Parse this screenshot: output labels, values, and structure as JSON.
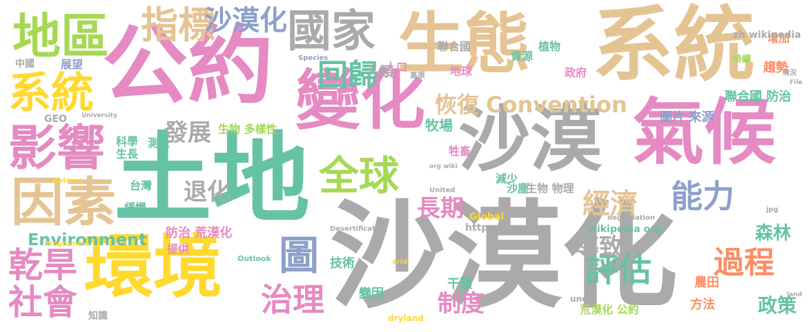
{
  "palette": {
    "gray": "#aaaaaa",
    "gold": "#e0c98f",
    "pink": "#e58ac3",
    "teal": "#66c2a5",
    "orange": "#fc8d62",
    "green": "#a6d854",
    "yellow": "#ffd92f",
    "blue": "#8da0cb",
    "tan": "#e5c494"
  },
  "words": [
    {
      "text": "沙漠化",
      "color": "gray"
    },
    {
      "text": "土地",
      "color": "teal"
    },
    {
      "text": "公約",
      "color": "pink"
    },
    {
      "text": "系統",
      "color": "tan"
    },
    {
      "text": "生態",
      "color": "tan"
    },
    {
      "text": "沙漠",
      "color": "gray"
    },
    {
      "text": "氣候",
      "color": "pink"
    },
    {
      "text": "變化",
      "color": "pink"
    },
    {
      "text": "環境",
      "color": "yellow"
    },
    {
      "text": "地區",
      "color": "green"
    },
    {
      "text": "影響",
      "color": "pink"
    },
    {
      "text": "因素",
      "color": "tan"
    },
    {
      "text": "系統",
      "color": "yellow"
    },
    {
      "text": "國家",
      "color": "gray"
    },
    {
      "text": "指標",
      "color": "tan"
    },
    {
      "text": "沙漠化",
      "color": "blue"
    },
    {
      "text": "回歸",
      "color": "teal"
    },
    {
      "text": "全球",
      "color": "green"
    },
    {
      "text": "圖",
      "color": "blue"
    },
    {
      "text": "治理",
      "color": "pink"
    },
    {
      "text": "乾旱",
      "color": "pink"
    },
    {
      "text": "社會",
      "color": "pink"
    },
    {
      "text": "評估",
      "color": "teal"
    },
    {
      "text": "過程",
      "color": "orange"
    },
    {
      "text": "能力",
      "color": "blue"
    },
    {
      "text": "經濟",
      "color": "tan"
    },
    {
      "text": "長期",
      "color": "pink"
    },
    {
      "text": "Convention",
      "color": "tan"
    },
    {
      "text": "恢復",
      "color": "tan"
    },
    {
      "text": "Environment",
      "color": "teal"
    },
    {
      "text": "發展",
      "color": "gray"
    },
    {
      "text": "退化",
      "color": "gray"
    },
    {
      "text": "導致",
      "color": "gray"
    },
    {
      "text": "制度",
      "color": "pink"
    },
    {
      "text": "森林",
      "color": "teal"
    },
    {
      "text": "政策",
      "color": "teal"
    },
    {
      "text": "防治 荒漠化",
      "color": "pink"
    },
    {
      "text": "聯合國 防治",
      "color": "teal"
    },
    {
      "text": "圖片 來源",
      "color": "blue"
    },
    {
      "text": "技術",
      "color": "teal"
    },
    {
      "text": "干預",
      "color": "teal"
    },
    {
      "text": "變因",
      "color": "teal"
    },
    {
      "text": "農田",
      "color": "orange"
    },
    {
      "text": "方法",
      "color": "orange"
    },
    {
      "text": "牧場",
      "color": "teal"
    },
    {
      "text": "人類",
      "color": "gray"
    },
    {
      "text": "人口",
      "color": "pink"
    },
    {
      "text": "地球",
      "color": "pink"
    },
    {
      "text": "政府",
      "color": "pink"
    },
    {
      "text": "資源",
      "color": "teal"
    },
    {
      "text": "趨勢",
      "color": "orange"
    },
    {
      "text": "增加",
      "color": "orange"
    },
    {
      "text": "聯合國",
      "color": "gray"
    },
    {
      "text": "植物",
      "color": "teal"
    },
    {
      "text": "生物 多樣性",
      "color": "green"
    },
    {
      "text": "測量",
      "color": "teal"
    },
    {
      "text": "提供",
      "color": "pink"
    },
    {
      "text": "台灣",
      "color": "teal"
    },
    {
      "text": "緩慢",
      "color": "teal"
    },
    {
      "text": "科學",
      "color": "teal"
    },
    {
      "text": "生長",
      "color": "teal"
    },
    {
      "text": "展望",
      "color": "blue"
    },
    {
      "text": "減少",
      "color": "teal"
    },
    {
      "text": "沙塵",
      "color": "teal"
    },
    {
      "text": "生物 物理",
      "color": "gray"
    },
    {
      "text": "荒漠化 公約",
      "color": "green"
    },
    {
      "text": "牲畜",
      "color": "pink"
    },
    {
      "text": "http zh",
      "color": "gray"
    },
    {
      "text": "Global",
      "color": "yellow"
    },
    {
      "text": "wikipedia org",
      "color": "teal"
    },
    {
      "text": "zh wikipedia",
      "color": "gray"
    },
    {
      "text": "GEO",
      "color": "gray"
    },
    {
      "text": "知識",
      "color": "gray"
    },
    {
      "text": "dryland",
      "color": "yellow"
    },
    {
      "text": "unep",
      "color": "gray"
    },
    {
      "text": "Desertification",
      "color": "gray"
    },
    {
      "text": "Outlook",
      "color": "teal"
    },
    {
      "text": "Species",
      "color": "blue"
    },
    {
      "text": "Nations",
      "color": "yellow"
    },
    {
      "text": "Programme",
      "color": "yellow"
    },
    {
      "text": "University",
      "color": "gray"
    },
    {
      "text": "中國",
      "color": "gray"
    },
    {
      "text": "高原",
      "color": "gray"
    },
    {
      "text": "持續",
      "color": "green"
    },
    {
      "text": "情況",
      "color": "gray"
    },
    {
      "text": "File",
      "color": "gray"
    },
    {
      "text": "jpg",
      "color": "gray"
    },
    {
      "text": "degradation",
      "color": "gray"
    },
    {
      "text": "land",
      "color": "gray"
    },
    {
      "text": "arid",
      "color": "yellow"
    },
    {
      "text": "United",
      "color": "gray"
    },
    {
      "text": "org wiki",
      "color": "gray"
    }
  ]
}
